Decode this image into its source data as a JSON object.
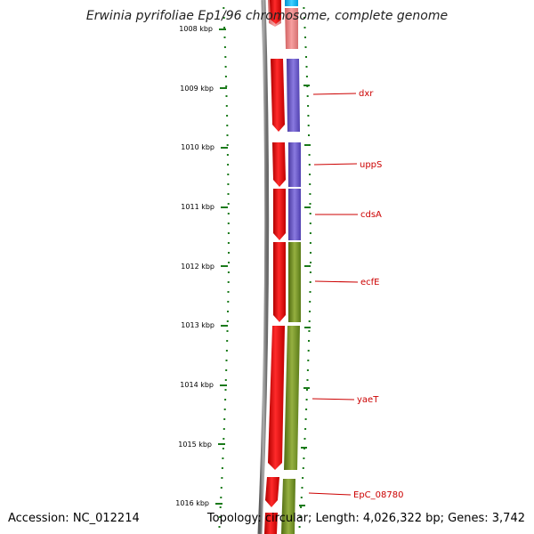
{
  "title": "Erwinia pyrifoliae Ep1/96 chromosome, complete genome",
  "footer": {
    "accession": "Accession: NC_012214",
    "topology": "Topology: circular; Length: 4,026,322 bp; Genes: 3,742"
  },
  "colors": {
    "backbone": "#7a7a7a",
    "cds": "#ff0000",
    "cds_light": "#f08080",
    "cog_purple": "#6a5acd",
    "cog_green": "#6b8e23",
    "cog_cyan": "#00bfff",
    "ruler": "#1a7a1a",
    "label": "#cc0000"
  },
  "ruler": {
    "unit": "kbp",
    "ticks": [
      1008,
      1009,
      1010,
      1011,
      1012,
      1013,
      1014,
      1015,
      1016
    ]
  },
  "genes": [
    {
      "name": "dxr",
      "cog": "purple"
    },
    {
      "name": "uppS",
      "cog": "purple"
    },
    {
      "name": "cdsA",
      "cog": "purple"
    },
    {
      "name": "ecfE",
      "cog": "green"
    },
    {
      "name": "yaeT",
      "cog": "green"
    },
    {
      "name": "EpC_08780",
      "cog": "green"
    }
  ]
}
